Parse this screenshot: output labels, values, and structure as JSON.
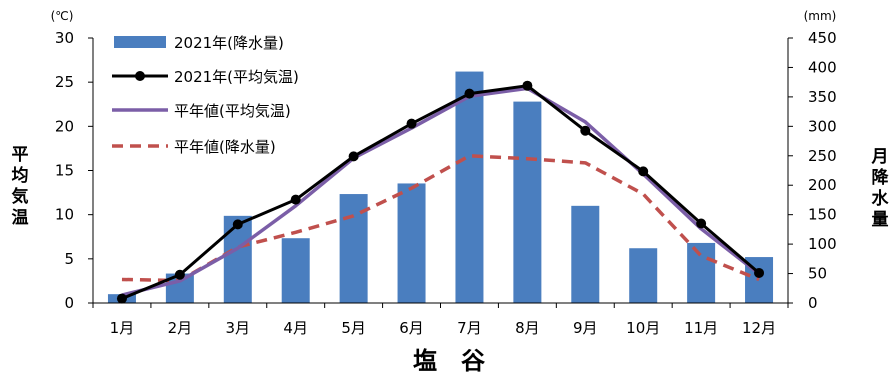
{
  "chart_data": {
    "type": "bar+line",
    "title": "塩　谷",
    "categories": [
      "1月",
      "2月",
      "3月",
      "4月",
      "5月",
      "6月",
      "7月",
      "8月",
      "9月",
      "10月",
      "11月",
      "12月"
    ],
    "y_left": {
      "label": [
        "平",
        "均",
        "気",
        "温"
      ],
      "unit": "(℃)",
      "range": [
        0,
        30
      ],
      "ticks": [
        "0",
        "5",
        "10",
        "15",
        "20",
        "25",
        "30"
      ]
    },
    "y_right": {
      "label": [
        "月",
        "降",
        "水",
        "量"
      ],
      "unit": "(mm)",
      "range": [
        0,
        450
      ],
      "ticks": [
        "0",
        "50",
        "100",
        "150",
        "200",
        "250",
        "300",
        "350",
        "400",
        "450"
      ]
    },
    "series": [
      {
        "name": "2021年(降水量)",
        "kind": "bar",
        "axis": "right",
        "color": "#4a7ebf",
        "values": [
          15,
          50,
          148,
          110,
          185,
          203,
          393,
          342,
          165,
          93,
          102,
          78
        ]
      },
      {
        "name": "2021年(平均気温)",
        "kind": "line-marker",
        "axis": "left",
        "color": "#000000",
        "values": [
          0.5,
          3.2,
          8.9,
          11.7,
          16.6,
          20.3,
          23.7,
          24.6,
          19.5,
          14.9,
          9.0,
          3.4
        ]
      },
      {
        "name": "平年値(平均気温)",
        "kind": "line",
        "axis": "left",
        "color": "#7b5ea7",
        "values": [
          0.9,
          2.5,
          6.2,
          11.0,
          16.4,
          19.8,
          23.4,
          24.3,
          20.5,
          14.6,
          8.4,
          3.3
        ]
      },
      {
        "name": "平年値(降水量)",
        "kind": "dashed-line",
        "axis": "right",
        "color": "#c0504d",
        "values": [
          40,
          38,
          95,
          120,
          148,
          195,
          250,
          245,
          238,
          185,
          80,
          40
        ]
      }
    ],
    "legend_position": "top-left"
  }
}
